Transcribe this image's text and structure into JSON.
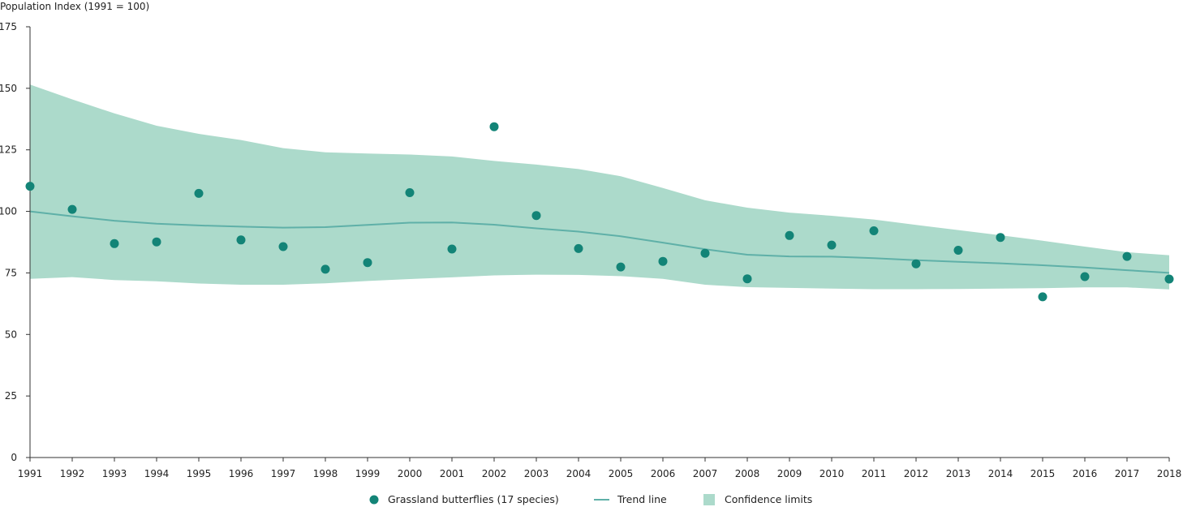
{
  "chart_data": {
    "type": "scatter",
    "ylabel": "Population Index (1991 = 100)",
    "xlabel": "",
    "ylim": [
      0,
      175
    ],
    "yticks": [
      0,
      25,
      50,
      75,
      100,
      125,
      150,
      175
    ],
    "grid": false,
    "legend_position": "bottom-center",
    "x": [
      1991,
      1992,
      1993,
      1994,
      1995,
      1996,
      1997,
      1998,
      1999,
      2000,
      2001,
      2002,
      2003,
      2004,
      2005,
      2006,
      2007,
      2008,
      2009,
      2010,
      2011,
      2012,
      2013,
      2014,
      2015,
      2016,
      2017,
      2018
    ],
    "series": [
      {
        "name": "Grassland butterflies (17 species)",
        "kind": "scatter",
        "color": "#138477",
        "values": [
          110.2,
          100.8,
          86.9,
          87.6,
          107.3,
          88.4,
          85.7,
          76.5,
          79.2,
          107.6,
          84.7,
          134.4,
          98.3,
          84.9,
          77.4,
          79.7,
          83.0,
          72.6,
          90.2,
          86.3,
          92.1,
          78.7,
          84.2,
          89.4,
          65.3,
          73.5,
          81.7,
          72.5
        ]
      },
      {
        "name": "Trend line",
        "kind": "line",
        "color": "#5fb0a8",
        "values": [
          100.0,
          98.0,
          96.2,
          95.0,
          94.3,
          93.8,
          93.4,
          93.6,
          94.5,
          95.4,
          95.5,
          94.6,
          93.1,
          91.8,
          89.9,
          87.3,
          84.6,
          82.4,
          81.7,
          81.6,
          81.0,
          80.2,
          79.5,
          78.9,
          78.1,
          77.2,
          76.1,
          75.0
        ]
      },
      {
        "name": "Confidence limits",
        "kind": "band",
        "color": "#acdacb",
        "upper": [
          151.5,
          145.5,
          139.8,
          134.8,
          131.5,
          129.0,
          125.7,
          124.0,
          123.5,
          123.1,
          122.3,
          120.5,
          119.0,
          117.2,
          114.3,
          109.5,
          104.5,
          101.5,
          99.5,
          98.2,
          96.7,
          94.5,
          92.4,
          90.3,
          88.1,
          85.7,
          83.4,
          82.2
        ],
        "lower": [
          72.6,
          73.3,
          72.1,
          71.6,
          70.7,
          70.2,
          70.2,
          70.8,
          71.7,
          72.5,
          73.2,
          74.0,
          74.3,
          74.2,
          73.7,
          72.6,
          70.2,
          69.2,
          68.9,
          68.6,
          68.4,
          68.4,
          68.5,
          68.6,
          68.8,
          69.1,
          69.1,
          68.3
        ]
      }
    ]
  }
}
